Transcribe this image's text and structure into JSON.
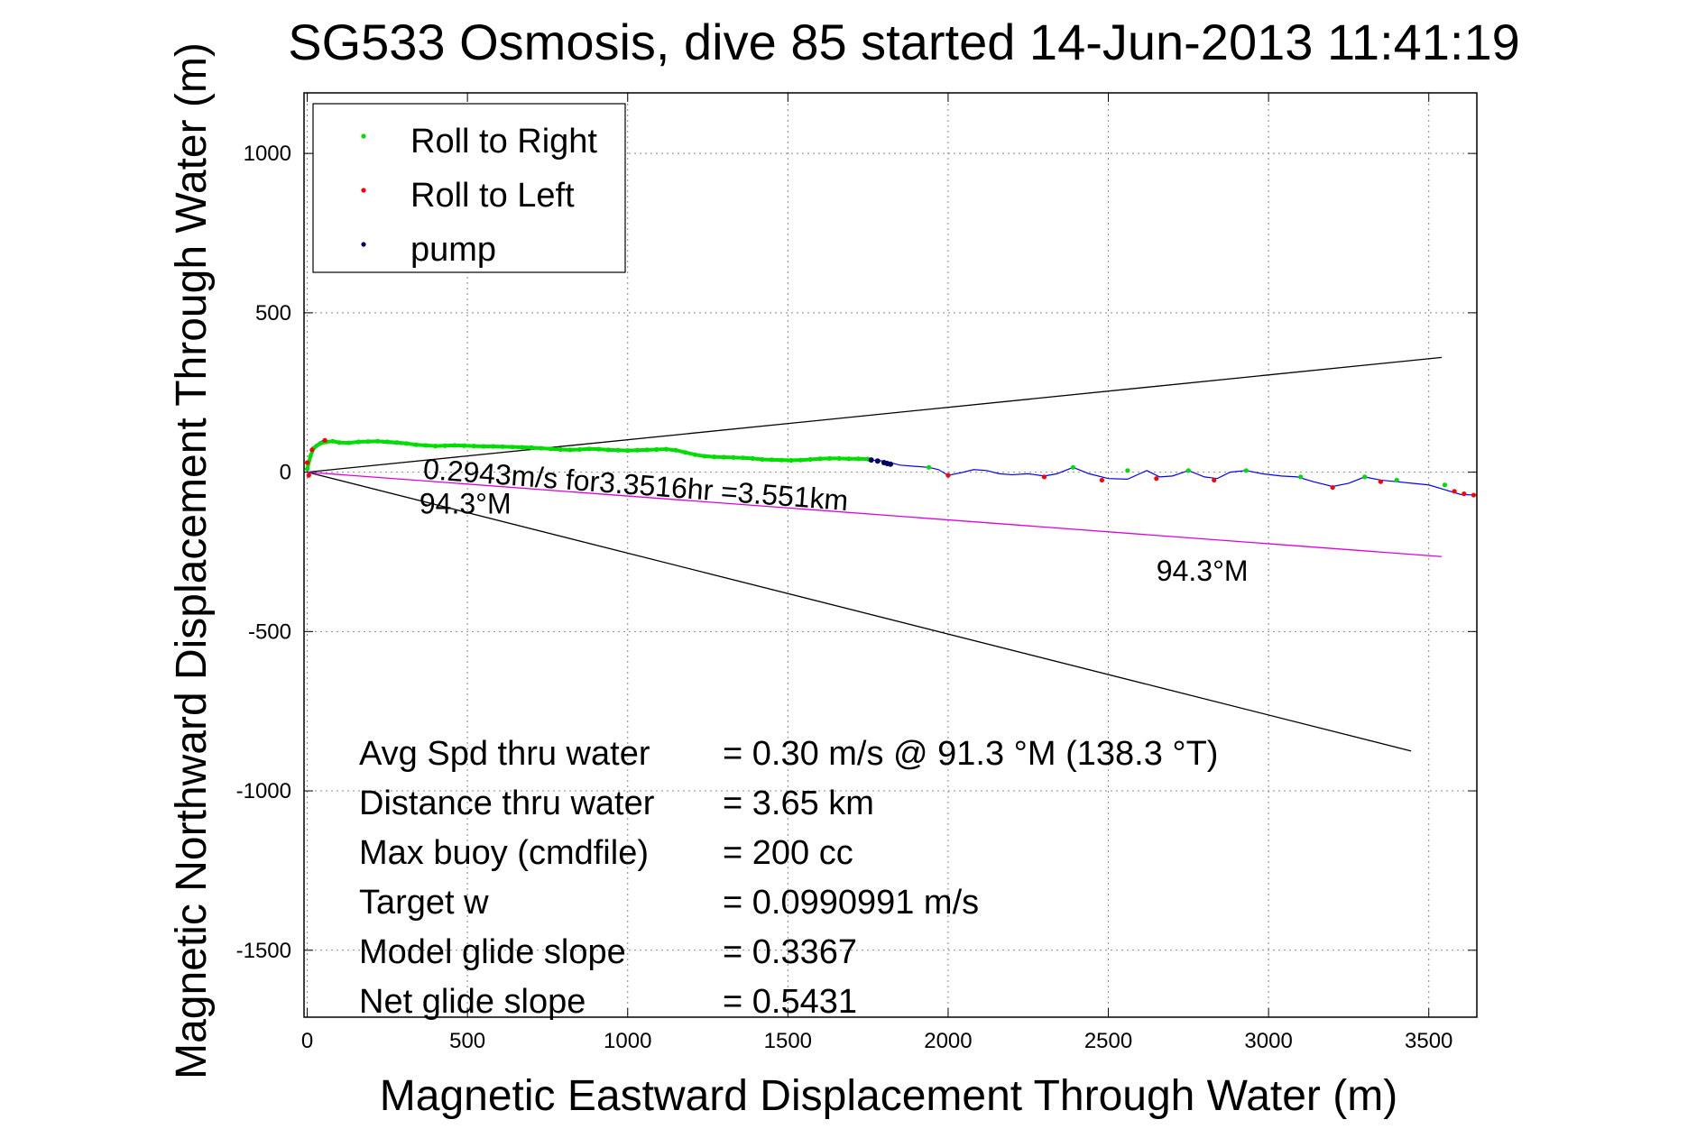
{
  "chart_data": {
    "type": "scatter",
    "title": "SG533 Osmosis, dive 85 started 14-Jun-2013 11:41:19",
    "xlabel": "Magnetic Eastward Displacement Through Water (m)",
    "ylabel": "Magnetic Northward Displacement Through Water (m)",
    "xlim": [
      -10,
      3650
    ],
    "ylim": [
      -1710,
      1190
    ],
    "xticks": [
      0,
      500,
      1000,
      1500,
      2000,
      2500,
      3000,
      3500
    ],
    "yticks": [
      1000,
      500,
      0,
      -500,
      -1000,
      -1500
    ],
    "grid": true,
    "legend_position": "top-left",
    "colors": {
      "roll_right": "#00dd00",
      "roll_left": "#ff0000",
      "pump": "#000066",
      "track_line": "#0000ff",
      "heading_line": "#dd00dd",
      "envelope_line": "#000000"
    },
    "legend": [
      {
        "key": "roll_right",
        "label": "Roll to Right"
      },
      {
        "key": "roll_left",
        "label": "Roll to Left"
      },
      {
        "key": "pump",
        "label": "pump"
      }
    ],
    "series": [
      {
        "key": "track_line",
        "x": [
          0,
          10,
          25,
          50,
          100,
          200,
          300,
          400,
          500,
          600,
          700,
          800,
          900,
          1000,
          1100,
          1200,
          1300,
          1400,
          1500,
          1600,
          1700,
          1760,
          1800,
          1850,
          1900,
          1940,
          1970,
          2000,
          2040,
          2080,
          2120,
          2160,
          2200,
          2250,
          2300,
          2340,
          2390,
          2440,
          2500,
          2560,
          2620,
          2660,
          2700,
          2750,
          2800,
          2840,
          2880,
          2930,
          2980,
          3040,
          3090,
          3140,
          3200,
          3250,
          3300,
          3350,
          3400,
          3450,
          3500,
          3550,
          3600,
          3650
        ],
        "y": [
          0,
          60,
          85,
          100,
          92,
          95,
          87,
          82,
          82,
          80,
          75,
          70,
          73,
          68,
          72,
          58,
          48,
          40,
          38,
          43,
          42,
          38,
          35,
          22,
          18,
          15,
          8,
          -10,
          -2,
          8,
          5,
          -5,
          -8,
          -5,
          -12,
          -5,
          15,
          -5,
          -20,
          -22,
          5,
          -15,
          -12,
          5,
          -15,
          -20,
          0,
          5,
          -5,
          -12,
          -15,
          -30,
          -45,
          -35,
          -15,
          -25,
          -30,
          -35,
          -40,
          -55,
          -70,
          -72
        ]
      },
      {
        "key": "roll_right",
        "x": [
          0,
          10,
          20,
          40,
          60,
          80,
          100,
          130,
          160,
          190,
          220,
          250,
          280,
          310,
          340,
          370,
          400,
          430,
          460,
          490,
          520,
          550,
          580,
          610,
          640,
          670,
          700,
          730,
          760,
          790,
          820,
          850,
          880,
          910,
          940,
          970,
          1000,
          1030,
          1060,
          1090,
          1120,
          1150,
          1180,
          1210,
          1240,
          1270,
          1300,
          1330,
          1360,
          1390,
          1420,
          1450,
          1480,
          1510,
          1540,
          1570,
          1600,
          1630,
          1660,
          1690,
          1720,
          1750,
          1940,
          2390,
          2560,
          2750,
          2930,
          3100,
          3300,
          3400,
          3550
        ],
        "y": [
          10,
          50,
          75,
          90,
          95,
          97,
          93,
          92,
          95,
          96,
          97,
          95,
          93,
          90,
          86,
          84,
          82,
          83,
          84,
          83,
          82,
          81,
          81,
          80,
          79,
          78,
          77,
          75,
          73,
          71,
          70,
          71,
          73,
          72,
          70,
          69,
          68,
          69,
          70,
          71,
          72,
          69,
          62,
          55,
          50,
          48,
          47,
          46,
          45,
          43,
          40,
          39,
          38,
          37,
          38,
          40,
          42,
          43,
          43,
          42,
          42,
          41,
          15,
          15,
          5,
          5,
          5,
          -15,
          -15,
          -25,
          -40
        ]
      },
      {
        "key": "roll_left",
        "x": [
          0,
          5,
          15,
          55,
          2000,
          2300,
          2480,
          2650,
          2830,
          3200,
          3350,
          3580,
          3610,
          3640
        ],
        "y": [
          30,
          -10,
          70,
          100,
          -10,
          -15,
          -25,
          -20,
          -25,
          -48,
          -30,
          -60,
          -68,
          -72
        ]
      },
      {
        "key": "pump",
        "x": [
          1760,
          1780,
          1800,
          1810,
          1820
        ],
        "y": [
          38,
          35,
          30,
          27,
          25
        ]
      }
    ],
    "lines": [
      {
        "key": "envelope_line",
        "x": [
          0,
          3540
        ],
        "y": [
          0,
          360
        ]
      },
      {
        "key": "envelope_line",
        "x": [
          0,
          3445
        ],
        "y": [
          0,
          -875
        ]
      },
      {
        "key": "heading_line",
        "x": [
          0,
          3540
        ],
        "y": [
          0,
          -265
        ]
      }
    ],
    "annotations": [
      {
        "text": "0.2943m/s for3.3516hr =3.551km",
        "x": 360,
        "y": -20,
        "rotate": 4.3
      },
      {
        "text": "94.3°M",
        "x": 350,
        "y": -130,
        "rotate": 0
      },
      {
        "text": "94.3°M",
        "x": 2650,
        "y": -340,
        "rotate": 0
      }
    ],
    "stats": [
      {
        "label": "Avg Spd thru water",
        "value": "=  0.30 m/s @  91.3 °M (138.3 °T)"
      },
      {
        "label": "Distance thru water",
        "value": "=  3.65 km"
      },
      {
        "label": "Max buoy (cmdfile)",
        "value": "= 200 cc"
      },
      {
        "label": "Target w",
        "value": "= 0.0990991 m/s"
      },
      {
        "label": "Model glide slope",
        "value": "= 0.3367"
      },
      {
        "label": "Net glide slope",
        "value": "= 0.5431"
      }
    ]
  }
}
